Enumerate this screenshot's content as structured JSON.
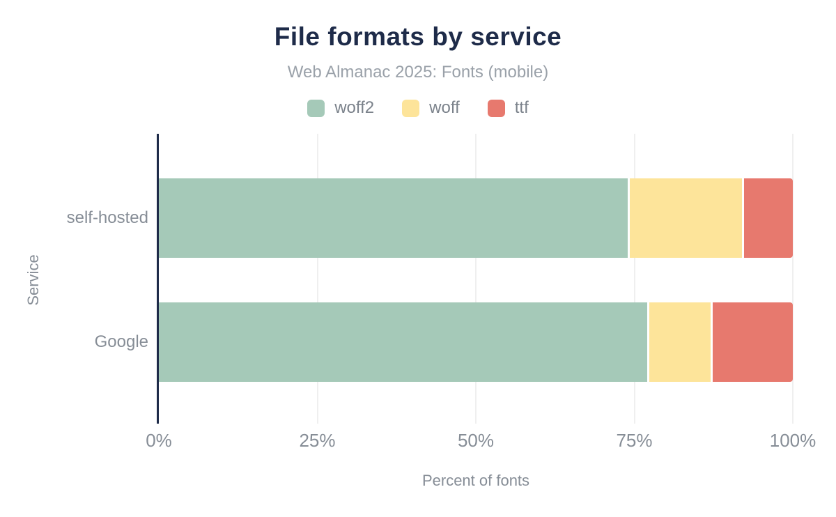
{
  "chart_data": {
    "type": "bar",
    "orientation": "horizontal",
    "stacked": true,
    "title": "File formats by service",
    "subtitle": "Web Almanac 2025: Fonts (mobile)",
    "categories": [
      "self-hosted",
      "Google"
    ],
    "series": [
      {
        "name": "woff2",
        "color": "#a5c9b8",
        "values": [
          74,
          77
        ]
      },
      {
        "name": "woff",
        "color": "#fde49a",
        "values": [
          18,
          10
        ]
      },
      {
        "name": "ttf",
        "color": "#e7796e",
        "values": [
          8,
          13
        ]
      }
    ],
    "xlabel": "Percent of fonts",
    "ylabel": "Service",
    "xlim": [
      0,
      100
    ],
    "x_ticks": [
      {
        "value": 0,
        "label": "0%"
      },
      {
        "value": 25,
        "label": "25%"
      },
      {
        "value": 50,
        "label": "50%"
      },
      {
        "value": 75,
        "label": "75%"
      },
      {
        "value": 100,
        "label": "100%"
      }
    ],
    "legend_position": "top",
    "grid": "vertical"
  },
  "colors": {
    "title": "#1e2b49",
    "subtitle": "#9aa1a9",
    "axis_line": "#1e2b49",
    "gridline": "#efefef",
    "tick_label": "#868d96",
    "legend_label": "#7b828b",
    "background": "#ffffff"
  }
}
